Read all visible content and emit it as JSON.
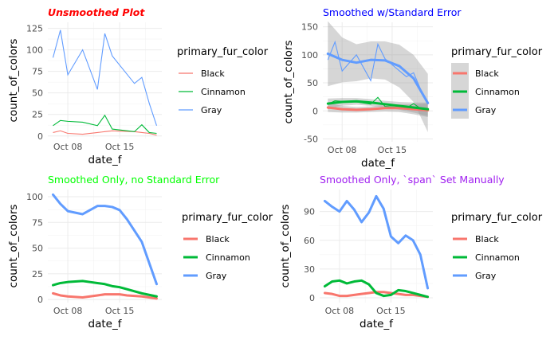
{
  "legend_title": "primary_fur_color",
  "colors": {
    "Black": "#F8766D",
    "Cinnamon": "#00BA38",
    "Gray": "#619CFF"
  },
  "x_ticks": [
    "Oct 08",
    "Oct 15"
  ],
  "chart_data": [
    {
      "type": "line",
      "title": "Unsmoothed Plot",
      "title_color": "#ff0000",
      "title_style": "bold-italic",
      "xlabel": "date_f",
      "ylabel": "count_of_colors",
      "ylim": [
        -3,
        132
      ],
      "yticks": [
        0,
        25,
        50,
        75,
        100,
        125
      ],
      "x": [
        "Oct 06",
        "Oct 07",
        "Oct 08",
        "Oct 10",
        "Oct 12",
        "Oct 13",
        "Oct 14",
        "Oct 17",
        "Oct 18",
        "Oct 19",
        "Oct 20"
      ],
      "series": [
        {
          "name": "Black",
          "values": [
            4,
            6,
            3,
            2,
            4,
            5,
            6,
            5,
            4,
            3,
            1
          ]
        },
        {
          "name": "Cinnamon",
          "values": [
            12,
            18,
            17,
            16,
            12,
            24,
            8,
            5,
            13,
            4,
            3
          ]
        },
        {
          "name": "Gray",
          "values": [
            91,
            123,
            71,
            100,
            54,
            119,
            93,
            61,
            68,
            38,
            12
          ]
        }
      ],
      "legend": "right"
    },
    {
      "type": "line",
      "title": "Smoothed w/Standard Error",
      "title_color": "#0000ff",
      "title_style": "plain",
      "xlabel": "date_f",
      "ylabel": "count_of_colors",
      "ylim": [
        -55,
        158
      ],
      "yticks": [
        -50,
        0,
        50,
        100,
        150
      ],
      "x": [
        "Oct 06",
        "Oct 07",
        "Oct 08",
        "Oct 10",
        "Oct 12",
        "Oct 13",
        "Oct 14",
        "Oct 17",
        "Oct 18",
        "Oct 19",
        "Oct 20"
      ],
      "series": [
        {
          "name": "Black",
          "values": [
            4,
            6,
            3,
            2,
            4,
            5,
            6,
            5,
            4,
            3,
            1
          ]
        },
        {
          "name": "Cinnamon",
          "values": [
            12,
            18,
            17,
            16,
            12,
            24,
            8,
            5,
            13,
            4,
            3
          ]
        },
        {
          "name": "Gray",
          "values": [
            91,
            123,
            71,
            100,
            54,
            119,
            93,
            61,
            68,
            38,
            12
          ]
        }
      ],
      "smooth_x": [
        "Oct 06",
        "Oct 08",
        "Oct 10",
        "Oct 12",
        "Oct 14",
        "Oct 16",
        "Oct 18",
        "Oct 20"
      ],
      "smooth": [
        {
          "name": "Black",
          "fit": [
            6,
            3,
            2,
            3,
            5,
            5,
            3,
            1
          ],
          "se": [
            8,
            6,
            5,
            5,
            6,
            7,
            9,
            12
          ]
        },
        {
          "name": "Cinnamon",
          "fit": [
            13,
            16,
            17,
            15,
            12,
            9,
            6,
            3
          ],
          "se": [
            9,
            7,
            6,
            6,
            6,
            7,
            9,
            12
          ]
        },
        {
          "name": "Gray",
          "fit": [
            102,
            91,
            86,
            91,
            90,
            80,
            58,
            14
          ],
          "se": [
            58,
            40,
            33,
            33,
            34,
            38,
            42,
            52
          ]
        }
      ],
      "legend": "right"
    },
    {
      "type": "line",
      "title": "Smoothed Only, no Standard Error",
      "title_color": "#00ff00",
      "title_style": "plain",
      "xlabel": "date_f",
      "ylabel": "count_of_colors",
      "ylim": [
        -3,
        107
      ],
      "yticks": [
        0,
        25,
        50,
        75,
        100
      ],
      "smooth_x": [
        "Oct 06",
        "Oct 07",
        "Oct 08",
        "Oct 10",
        "Oct 11",
        "Oct 12",
        "Oct 13",
        "Oct 14",
        "Oct 15",
        "Oct 16",
        "Oct 18",
        "Oct 20"
      ],
      "smooth": [
        {
          "name": "Black",
          "fit": [
            6,
            4,
            3,
            2,
            3,
            4,
            5,
            5,
            5,
            4,
            3,
            1
          ]
        },
        {
          "name": "Cinnamon",
          "fit": [
            14,
            16,
            17,
            18,
            17,
            16,
            15,
            13,
            12,
            10,
            6,
            3
          ]
        },
        {
          "name": "Gray",
          "fit": [
            102,
            93,
            86,
            83,
            87,
            91,
            91,
            90,
            87,
            78,
            56,
            15
          ]
        }
      ],
      "legend": "right"
    },
    {
      "type": "line",
      "title": "Smoothed Only, `span` Set Manually",
      "title_color": "#a020f0",
      "title_style": "plain",
      "xlabel": "date_f",
      "ylabel": "count_of_colors",
      "ylim": [
        -5,
        113
      ],
      "yticks": [
        0,
        30,
        60,
        90
      ],
      "smooth_x": [
        "Oct 06",
        "Oct 07",
        "Oct 08",
        "Oct 09",
        "Oct 10",
        "Oct 11",
        "Oct 12",
        "Oct 13",
        "Oct 14",
        "Oct 15",
        "Oct 16",
        "Oct 17",
        "Oct 18",
        "Oct 19",
        "Oct 20"
      ],
      "smooth": [
        {
          "name": "Black",
          "fit": [
            5,
            4,
            2,
            2,
            3,
            4,
            5,
            6,
            6,
            5,
            4,
            3,
            3,
            2,
            1
          ]
        },
        {
          "name": "Cinnamon",
          "fit": [
            12,
            17,
            18,
            15,
            17,
            18,
            14,
            5,
            2,
            3,
            8,
            7,
            5,
            3,
            1
          ]
        },
        {
          "name": "Gray",
          "fit": [
            101,
            95,
            90,
            101,
            92,
            79,
            89,
            106,
            93,
            64,
            57,
            65,
            60,
            45,
            10
          ]
        }
      ],
      "legend": "right"
    }
  ]
}
